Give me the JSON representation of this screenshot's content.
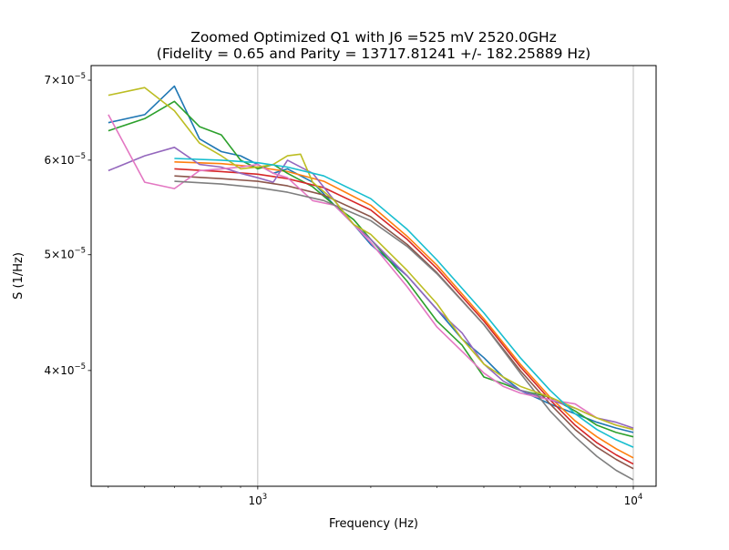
{
  "chart_data": {
    "type": "line",
    "title_line1": "Zoomed Optimized Q1 with J6 =525 mV 2520.0GHz",
    "title_line2": "(Fidelity = 0.65 and Parity = 13717.81241 +/- 182.25889 Hz)",
    "xlabel": "Frequency (Hz)",
    "ylabel": "S (1/Hz)",
    "x_scale": "log",
    "y_scale": "log",
    "xlim": [
      360,
      11500
    ],
    "ylim": [
      3.2e-05,
      7.2e-05
    ],
    "x_ticks": [
      {
        "value": 1000,
        "base": "10",
        "exp": "3"
      },
      {
        "value": 10000,
        "base": "10",
        "exp": "4"
      }
    ],
    "y_ticks": [
      {
        "value": 4e-05,
        "mant": "4",
        "base": "10",
        "exp": "−5"
      },
      {
        "value": 5e-05,
        "mant": "5",
        "base": "10",
        "exp": "−5"
      },
      {
        "value": 6e-05,
        "mant": "6",
        "base": "10",
        "exp": "−5"
      },
      {
        "value": 7e-05,
        "mant": "7",
        "base": "10",
        "exp": "−5"
      }
    ],
    "grid": "x-major",
    "series": [
      {
        "color": "#1f77b4",
        "x": [
          400,
          500,
          600,
          700,
          800,
          900,
          1000,
          1100,
          1200,
          1400,
          1600,
          1800,
          2000,
          2500,
          3000,
          3500,
          4000,
          4500,
          5000,
          6000,
          7000,
          8000,
          9000,
          10000
        ],
        "y": [
          6.45e-05,
          6.55e-05,
          6.92e-05,
          6.25e-05,
          6.1e-05,
          6.05e-05,
          5.95e-05,
          5.85e-05,
          5.9e-05,
          5.75e-05,
          5.5e-05,
          5.3e-05,
          5.1e-05,
          4.8e-05,
          4.5e-05,
          4.25e-05,
          4.1e-05,
          3.95e-05,
          3.85e-05,
          3.75e-05,
          3.68e-05,
          3.62e-05,
          3.58e-05,
          3.55e-05
        ]
      },
      {
        "color": "#ff7f0e",
        "x": [
          600,
          800,
          1000,
          1200,
          1500,
          2000,
          2500,
          3000,
          4000,
          5000,
          6000,
          7000,
          8000,
          9000,
          10000
        ],
        "y": [
          5.98e-05,
          5.96e-05,
          5.92e-05,
          5.87e-05,
          5.76e-05,
          5.5e-05,
          5.18e-05,
          4.9e-05,
          4.42e-05,
          4.05e-05,
          3.8e-05,
          3.63e-05,
          3.52e-05,
          3.44e-05,
          3.38e-05
        ]
      },
      {
        "color": "#2ca02c",
        "x": [
          400,
          500,
          600,
          700,
          800,
          900,
          1000,
          1100,
          1200,
          1400,
          1600,
          1800,
          2000,
          2500,
          3000,
          3500,
          4000,
          4500,
          5000,
          6000,
          7000,
          8000,
          9000,
          10000
        ],
        "y": [
          6.35e-05,
          6.5e-05,
          6.72e-05,
          6.4e-05,
          6.3e-05,
          6e-05,
          5.9e-05,
          5.95e-05,
          5.85e-05,
          5.7e-05,
          5.5e-05,
          5.35e-05,
          5.15e-05,
          4.75e-05,
          4.4e-05,
          4.2e-05,
          3.95e-05,
          3.9e-05,
          3.85e-05,
          3.8e-05,
          3.7e-05,
          3.6e-05,
          3.55e-05,
          3.52e-05
        ]
      },
      {
        "color": "#d62728",
        "x": [
          600,
          800,
          1000,
          1200,
          1500,
          2000,
          2500,
          3000,
          4000,
          5000,
          6000,
          7000,
          8000,
          9000,
          10000
        ],
        "y": [
          5.9e-05,
          5.87e-05,
          5.84e-05,
          5.79e-05,
          5.69e-05,
          5.45e-05,
          5.15e-05,
          4.87e-05,
          4.4e-05,
          4.03e-05,
          3.78e-05,
          3.6e-05,
          3.48e-05,
          3.4e-05,
          3.34e-05
        ]
      },
      {
        "color": "#9467bd",
        "x": [
          400,
          500,
          600,
          700,
          800,
          900,
          1000,
          1100,
          1200,
          1400,
          1600,
          1800,
          2000,
          2500,
          3000,
          3500,
          4000,
          4500,
          5000,
          6000,
          7000,
          8000,
          9000,
          10000
        ],
        "y": [
          5.88e-05,
          6.05e-05,
          6.15e-05,
          5.95e-05,
          5.92e-05,
          5.85e-05,
          5.8e-05,
          5.75e-05,
          6e-05,
          5.85e-05,
          5.55e-05,
          5.3e-05,
          5.15e-05,
          4.8e-05,
          4.5e-05,
          4.3e-05,
          4.05e-05,
          3.92e-05,
          3.85e-05,
          3.78e-05,
          3.72e-05,
          3.65e-05,
          3.62e-05,
          3.58e-05
        ]
      },
      {
        "color": "#8c564b",
        "x": [
          600,
          800,
          1000,
          1200,
          1500,
          2000,
          2500,
          3000,
          4000,
          5000,
          6000,
          7000,
          8000,
          9000,
          10000
        ],
        "y": [
          5.82e-05,
          5.79e-05,
          5.76e-05,
          5.71e-05,
          5.61e-05,
          5.38e-05,
          5.1e-05,
          4.83e-05,
          4.37e-05,
          4e-05,
          3.75e-05,
          3.57e-05,
          3.45e-05,
          3.37e-05,
          3.31e-05
        ]
      },
      {
        "color": "#e377c2",
        "x": [
          400,
          500,
          600,
          700,
          800,
          900,
          1000,
          1100,
          1200,
          1400,
          1600,
          1800,
          2000,
          2500,
          3000,
          3500,
          4000,
          4500,
          5000,
          6000,
          7000,
          8000,
          9000,
          10000
        ],
        "y": [
          6.55e-05,
          5.75e-05,
          5.68e-05,
          5.88e-05,
          5.9e-05,
          5.92e-05,
          5.95e-05,
          5.85e-05,
          5.8e-05,
          5.55e-05,
          5.5e-05,
          5.3e-05,
          5.12e-05,
          4.7e-05,
          4.35e-05,
          4.15e-05,
          3.98e-05,
          3.88e-05,
          3.83e-05,
          3.78e-05,
          3.75e-05,
          3.65e-05,
          3.6e-05,
          3.57e-05
        ]
      },
      {
        "color": "#7f7f7f",
        "x": [
          600,
          800,
          1000,
          1200,
          1500,
          2000,
          2500,
          3000,
          4000,
          5000,
          6000,
          7000,
          8000,
          9000,
          10000
        ],
        "y": [
          5.76e-05,
          5.73e-05,
          5.69e-05,
          5.64e-05,
          5.55e-05,
          5.34e-05,
          5.08e-05,
          4.82e-05,
          4.37e-05,
          3.98e-05,
          3.7e-05,
          3.52e-05,
          3.39e-05,
          3.3e-05,
          3.24e-05
        ]
      },
      {
        "color": "#bcbd22",
        "x": [
          400,
          500,
          600,
          700,
          800,
          900,
          1000,
          1100,
          1200,
          1300,
          1400,
          1600,
          1800,
          2000,
          2500,
          3000,
          3500,
          4000,
          4500,
          5000,
          6000,
          7000,
          8000,
          9000,
          10000
        ],
        "y": [
          6.8e-05,
          6.9e-05,
          6.6e-05,
          6.2e-05,
          6.05e-05,
          5.9e-05,
          5.92e-05,
          5.95e-05,
          6.05e-05,
          6.07e-05,
          5.75e-05,
          5.55e-05,
          5.3e-05,
          5.2e-05,
          4.85e-05,
          4.55e-05,
          4.25e-05,
          4.05e-05,
          3.95e-05,
          3.88e-05,
          3.8e-05,
          3.72e-05,
          3.65e-05,
          3.6e-05,
          3.57e-05
        ]
      },
      {
        "color": "#17becf",
        "x": [
          600,
          800,
          1000,
          1200,
          1500,
          2000,
          2500,
          3000,
          4000,
          5000,
          6000,
          7000,
          8000,
          9000,
          10000
        ],
        "y": [
          6.02e-05,
          6e-05,
          5.97e-05,
          5.92e-05,
          5.82e-05,
          5.57e-05,
          5.25e-05,
          4.95e-05,
          4.47e-05,
          4.1e-05,
          3.85e-05,
          3.68e-05,
          3.57e-05,
          3.5e-05,
          3.45e-05
        ]
      }
    ]
  }
}
